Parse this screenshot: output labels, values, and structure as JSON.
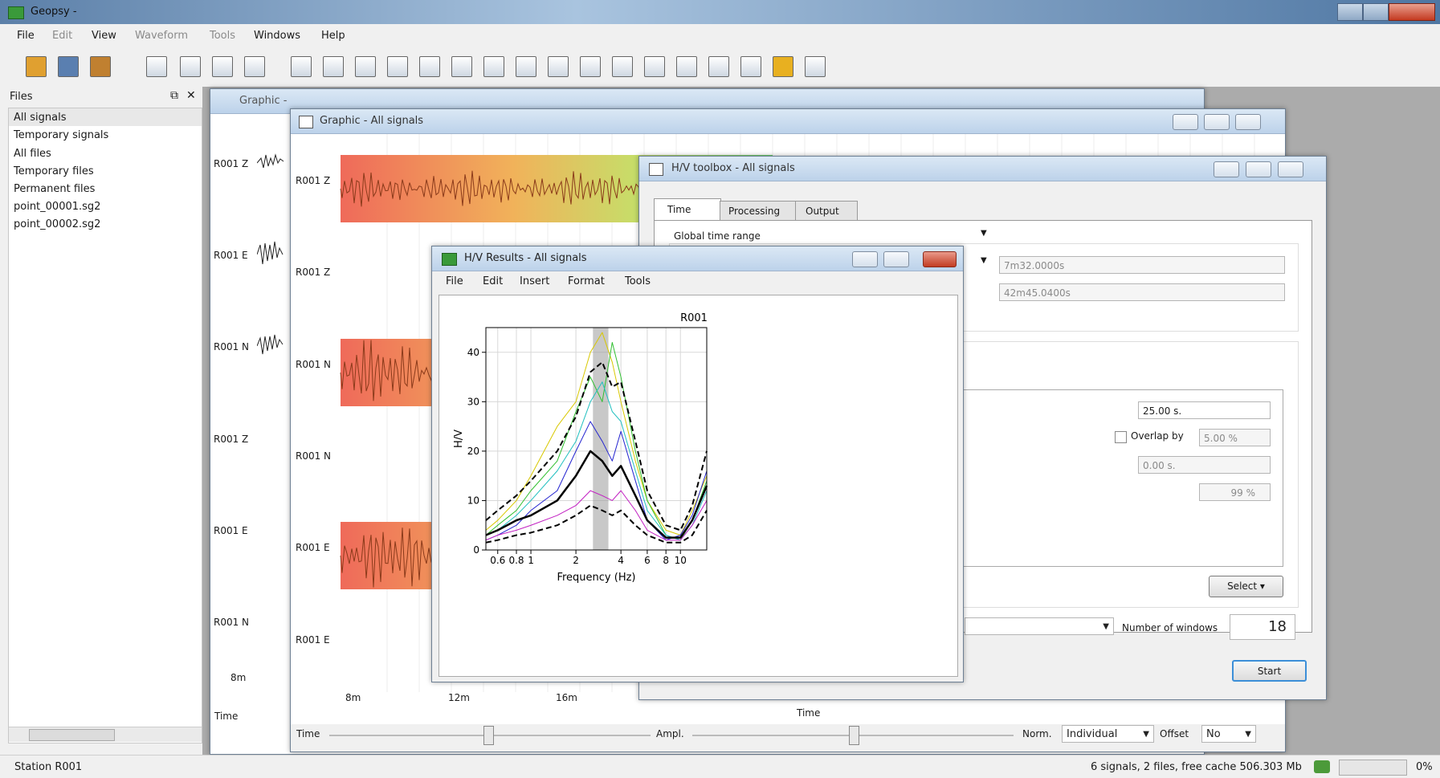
{
  "app": {
    "title": "Geopsy -",
    "menu": [
      "File",
      "Edit",
      "View",
      "Waveform",
      "Tools",
      "Windows",
      "Help"
    ]
  },
  "files_panel": {
    "title": "Files",
    "items": [
      "All signals",
      "Temporary signals",
      "All files",
      "Temporary files",
      "Permanent files",
      "point_00001.sg2",
      "point_00002.sg2"
    ]
  },
  "graphic_back": {
    "title": "Graphic -",
    "trace_labels": [
      "R001 Z",
      "R001 E",
      "R001 N",
      "R001 Z",
      "R001 E",
      "R001 N"
    ],
    "time_tick": "8m",
    "xlabel": "Time"
  },
  "graphic_front": {
    "title": "Graphic - All signals",
    "trace_labels": [
      "R001 Z",
      "R001 Z",
      "R001 N",
      "R001 N",
      "R001 E",
      "R001 E"
    ],
    "time_ticks": [
      "8m",
      "12m",
      "16m"
    ],
    "xlabel": "Time",
    "controls": {
      "time": "Time",
      "ampl": "Ampl.",
      "norm": "Norm.",
      "norm_value": "Individual",
      "offset": "Offset",
      "offset_value": "No"
    }
  },
  "hv_toolbox": {
    "title": "H/V toolbox - All signals",
    "tabs": [
      "Time",
      "Processing",
      "Output"
    ],
    "global_time_range": "Global time range",
    "from": "7m32.0000s",
    "to": "42m45.0400s",
    "window_length": "25.00 s.",
    "overlap_label": "Overlap by",
    "overlap": "5.00 %",
    "offset": "0.00 s.",
    "percent": "99 %",
    "select": "Select",
    "number_of_windows_label": "Number of windows",
    "number_of_windows": "18",
    "start": "Start"
  },
  "hv_results": {
    "title": "H/V Results - All signals",
    "menu": [
      "File",
      "Edit",
      "Insert",
      "Format",
      "Tools"
    ],
    "chart": {
      "type": "line",
      "title": "R001",
      "xlabel": "Frequency (Hz)",
      "ylabel": "H/V",
      "xscale": "log",
      "x": [
        0.5,
        0.6,
        0.8,
        1,
        1.5,
        2,
        2.5,
        3,
        3.5,
        4,
        5,
        6,
        8,
        10,
        12,
        15
      ],
      "xlim": [
        0.5,
        15
      ],
      "xticks": [
        0.6,
        0.8,
        1,
        2,
        4,
        6,
        8,
        10
      ],
      "ylim": [
        0,
        45
      ],
      "yticks": [
        0,
        10,
        20,
        30,
        40
      ],
      "grid": true,
      "f0_band": [
        2.6,
        3.3
      ],
      "series": [
        {
          "color": "#d8c800",
          "dashed": false,
          "width": 1,
          "values": [
            4,
            6,
            10,
            15,
            25,
            30,
            40,
            44,
            38,
            30,
            18,
            10,
            4,
            3,
            8,
            15
          ]
        },
        {
          "color": "#2fbf2f",
          "dashed": false,
          "width": 1,
          "values": [
            3,
            5,
            8,
            12,
            18,
            28,
            35,
            30,
            42,
            35,
            20,
            10,
            3,
            2,
            6,
            14
          ]
        },
        {
          "color": "#1fbfbf",
          "dashed": false,
          "width": 1,
          "values": [
            3,
            4,
            7,
            10,
            16,
            22,
            30,
            34,
            28,
            26,
            16,
            8,
            3,
            2,
            5,
            12
          ]
        },
        {
          "color": "#2424d0",
          "dashed": false,
          "width": 1,
          "values": [
            2,
            3,
            5,
            8,
            12,
            20,
            26,
            22,
            18,
            24,
            14,
            6,
            2,
            3,
            7,
            16
          ]
        },
        {
          "color": "#c21fc2",
          "dashed": false,
          "width": 1,
          "values": [
            2,
            3,
            4,
            5,
            7,
            9,
            12,
            11,
            10,
            12,
            8,
            4,
            2,
            2,
            5,
            10
          ]
        },
        {
          "color": "#000000",
          "dashed": true,
          "width": 2,
          "values": [
            6,
            8,
            11,
            14,
            20,
            27,
            36,
            38,
            33,
            34,
            22,
            12,
            5,
            4,
            9,
            20
          ]
        },
        {
          "color": "#000000",
          "dashed": true,
          "width": 2,
          "values": [
            1.5,
            2,
            3,
            3.5,
            5,
            7,
            9,
            8,
            7,
            8,
            5,
            3,
            1.5,
            1.5,
            3,
            8
          ]
        },
        {
          "color": "#000000",
          "dashed": false,
          "width": 2.5,
          "values": [
            3,
            4,
            6,
            7,
            10,
            15,
            20,
            18,
            15,
            17,
            11,
            6,
            2.5,
            2.5,
            6,
            13
          ]
        }
      ]
    }
  },
  "status": {
    "station": "Station R001",
    "info": "6 signals, 2 files, free cache 506.303 Mb",
    "progress": "0%"
  }
}
